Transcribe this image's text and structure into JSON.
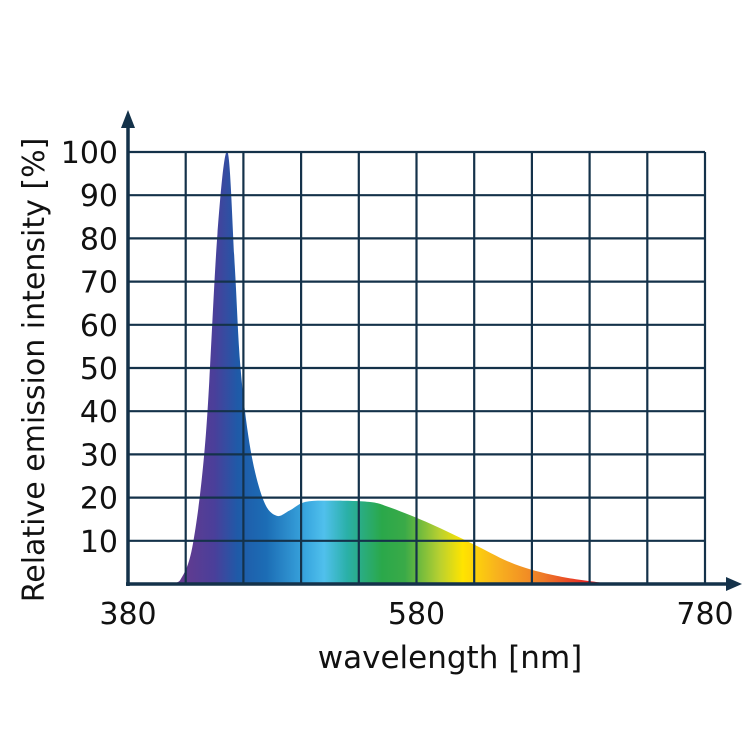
{
  "chart_data": {
    "type": "area",
    "title": "",
    "xlabel": "wavelength [nm]",
    "ylabel": "Relative emission intensity [%]",
    "xlim": [
      380,
      780
    ],
    "ylim": [
      0,
      100
    ],
    "x_ticks": [
      380,
      580,
      780
    ],
    "y_ticks": [
      10,
      20,
      30,
      40,
      50,
      60,
      70,
      80,
      90,
      100
    ],
    "x_grid_step": 40,
    "y_grid_step": 10,
    "grid": true,
    "fill": "spectral-color-gradient",
    "axis_color": "#14324a",
    "points": [
      [
        380,
        0
      ],
      [
        405,
        0
      ],
      [
        410,
        0.2
      ],
      [
        416,
        0.8
      ],
      [
        425,
        9.3
      ],
      [
        434,
        34.7
      ],
      [
        442,
        81
      ],
      [
        449,
        100
      ],
      [
        454,
        73.7
      ],
      [
        458,
        50
      ],
      [
        465,
        31
      ],
      [
        474,
        19.3
      ],
      [
        483,
        15.8
      ],
      [
        492,
        17
      ],
      [
        503,
        19
      ],
      [
        521,
        19.3
      ],
      [
        547,
        19
      ],
      [
        561,
        17.8
      ],
      [
        590,
        13.9
      ],
      [
        619,
        9.3
      ],
      [
        648,
        4.6
      ],
      [
        677,
        1.9
      ],
      [
        706,
        0.4
      ],
      [
        720,
        0
      ],
      [
        780,
        0
      ]
    ]
  }
}
